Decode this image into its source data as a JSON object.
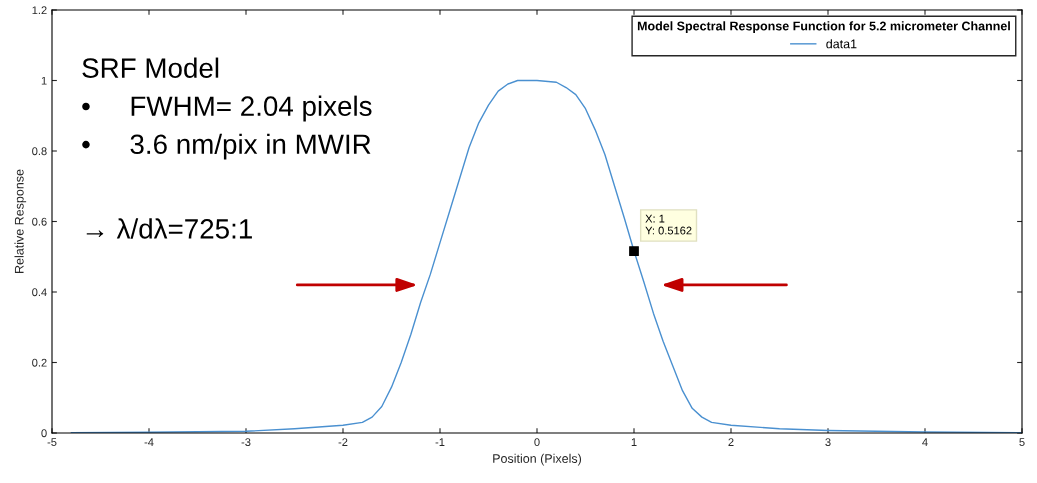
{
  "chart_data": {
    "type": "line",
    "xlabel": "Position (Pixels)",
    "ylabel": "Relative Response",
    "legend_title": "Model Spectral Response Function for 5.2 micrometer Channel",
    "legend": "top right",
    "grid": false,
    "marker": "none",
    "line_style": "solid",
    "xlim": [
      -5,
      5
    ],
    "xticks": [
      -5,
      -4,
      -3,
      -2,
      -1,
      0,
      1,
      2,
      3,
      4,
      5
    ],
    "ylim": [
      0,
      1.2
    ],
    "yticks": [
      0,
      0.2,
      0.4,
      0.6,
      0.8,
      1,
      1.2
    ],
    "series": [
      {
        "name": "data1",
        "color": "#4a90d0",
        "x": [
          -4.8,
          -4,
          -3,
          -2.5,
          -2,
          -1.8,
          -1.7,
          -1.6,
          -1.5,
          -1.4,
          -1.3,
          -1.2,
          -1.1,
          -1,
          -0.9,
          -0.8,
          -0.7,
          -0.6,
          -0.5,
          -0.4,
          -0.3,
          -0.2,
          0,
          0.2,
          0.3,
          0.4,
          0.5,
          0.6,
          0.7,
          0.8,
          0.9,
          1,
          1.1,
          1.2,
          1.3,
          1.4,
          1.5,
          1.6,
          1.7,
          1.8,
          2,
          2.5,
          3,
          4,
          5
        ],
        "values": [
          0.001,
          0.002,
          0.005,
          0.012,
          0.022,
          0.03,
          0.045,
          0.075,
          0.13,
          0.2,
          0.28,
          0.37,
          0.45,
          0.54,
          0.63,
          0.72,
          0.81,
          0.88,
          0.93,
          0.97,
          0.99,
          1.0,
          1.0,
          0.995,
          0.98,
          0.96,
          0.92,
          0.86,
          0.79,
          0.7,
          0.61,
          0.5162,
          0.43,
          0.34,
          0.26,
          0.19,
          0.12,
          0.07,
          0.045,
          0.03,
          0.022,
          0.012,
          0.007,
          0.003,
          0.001
        ]
      }
    ],
    "annotations": [
      "SRF Model",
      "•     FWHM= 2.04 pixels",
      "•     3.6 nm/pix in MWIR",
      "→ λ/dλ=725:1",
      {
        "text": "X: 1\nY: 0.5162",
        "x": 1,
        "y": 0.5162
      }
    ]
  }
}
